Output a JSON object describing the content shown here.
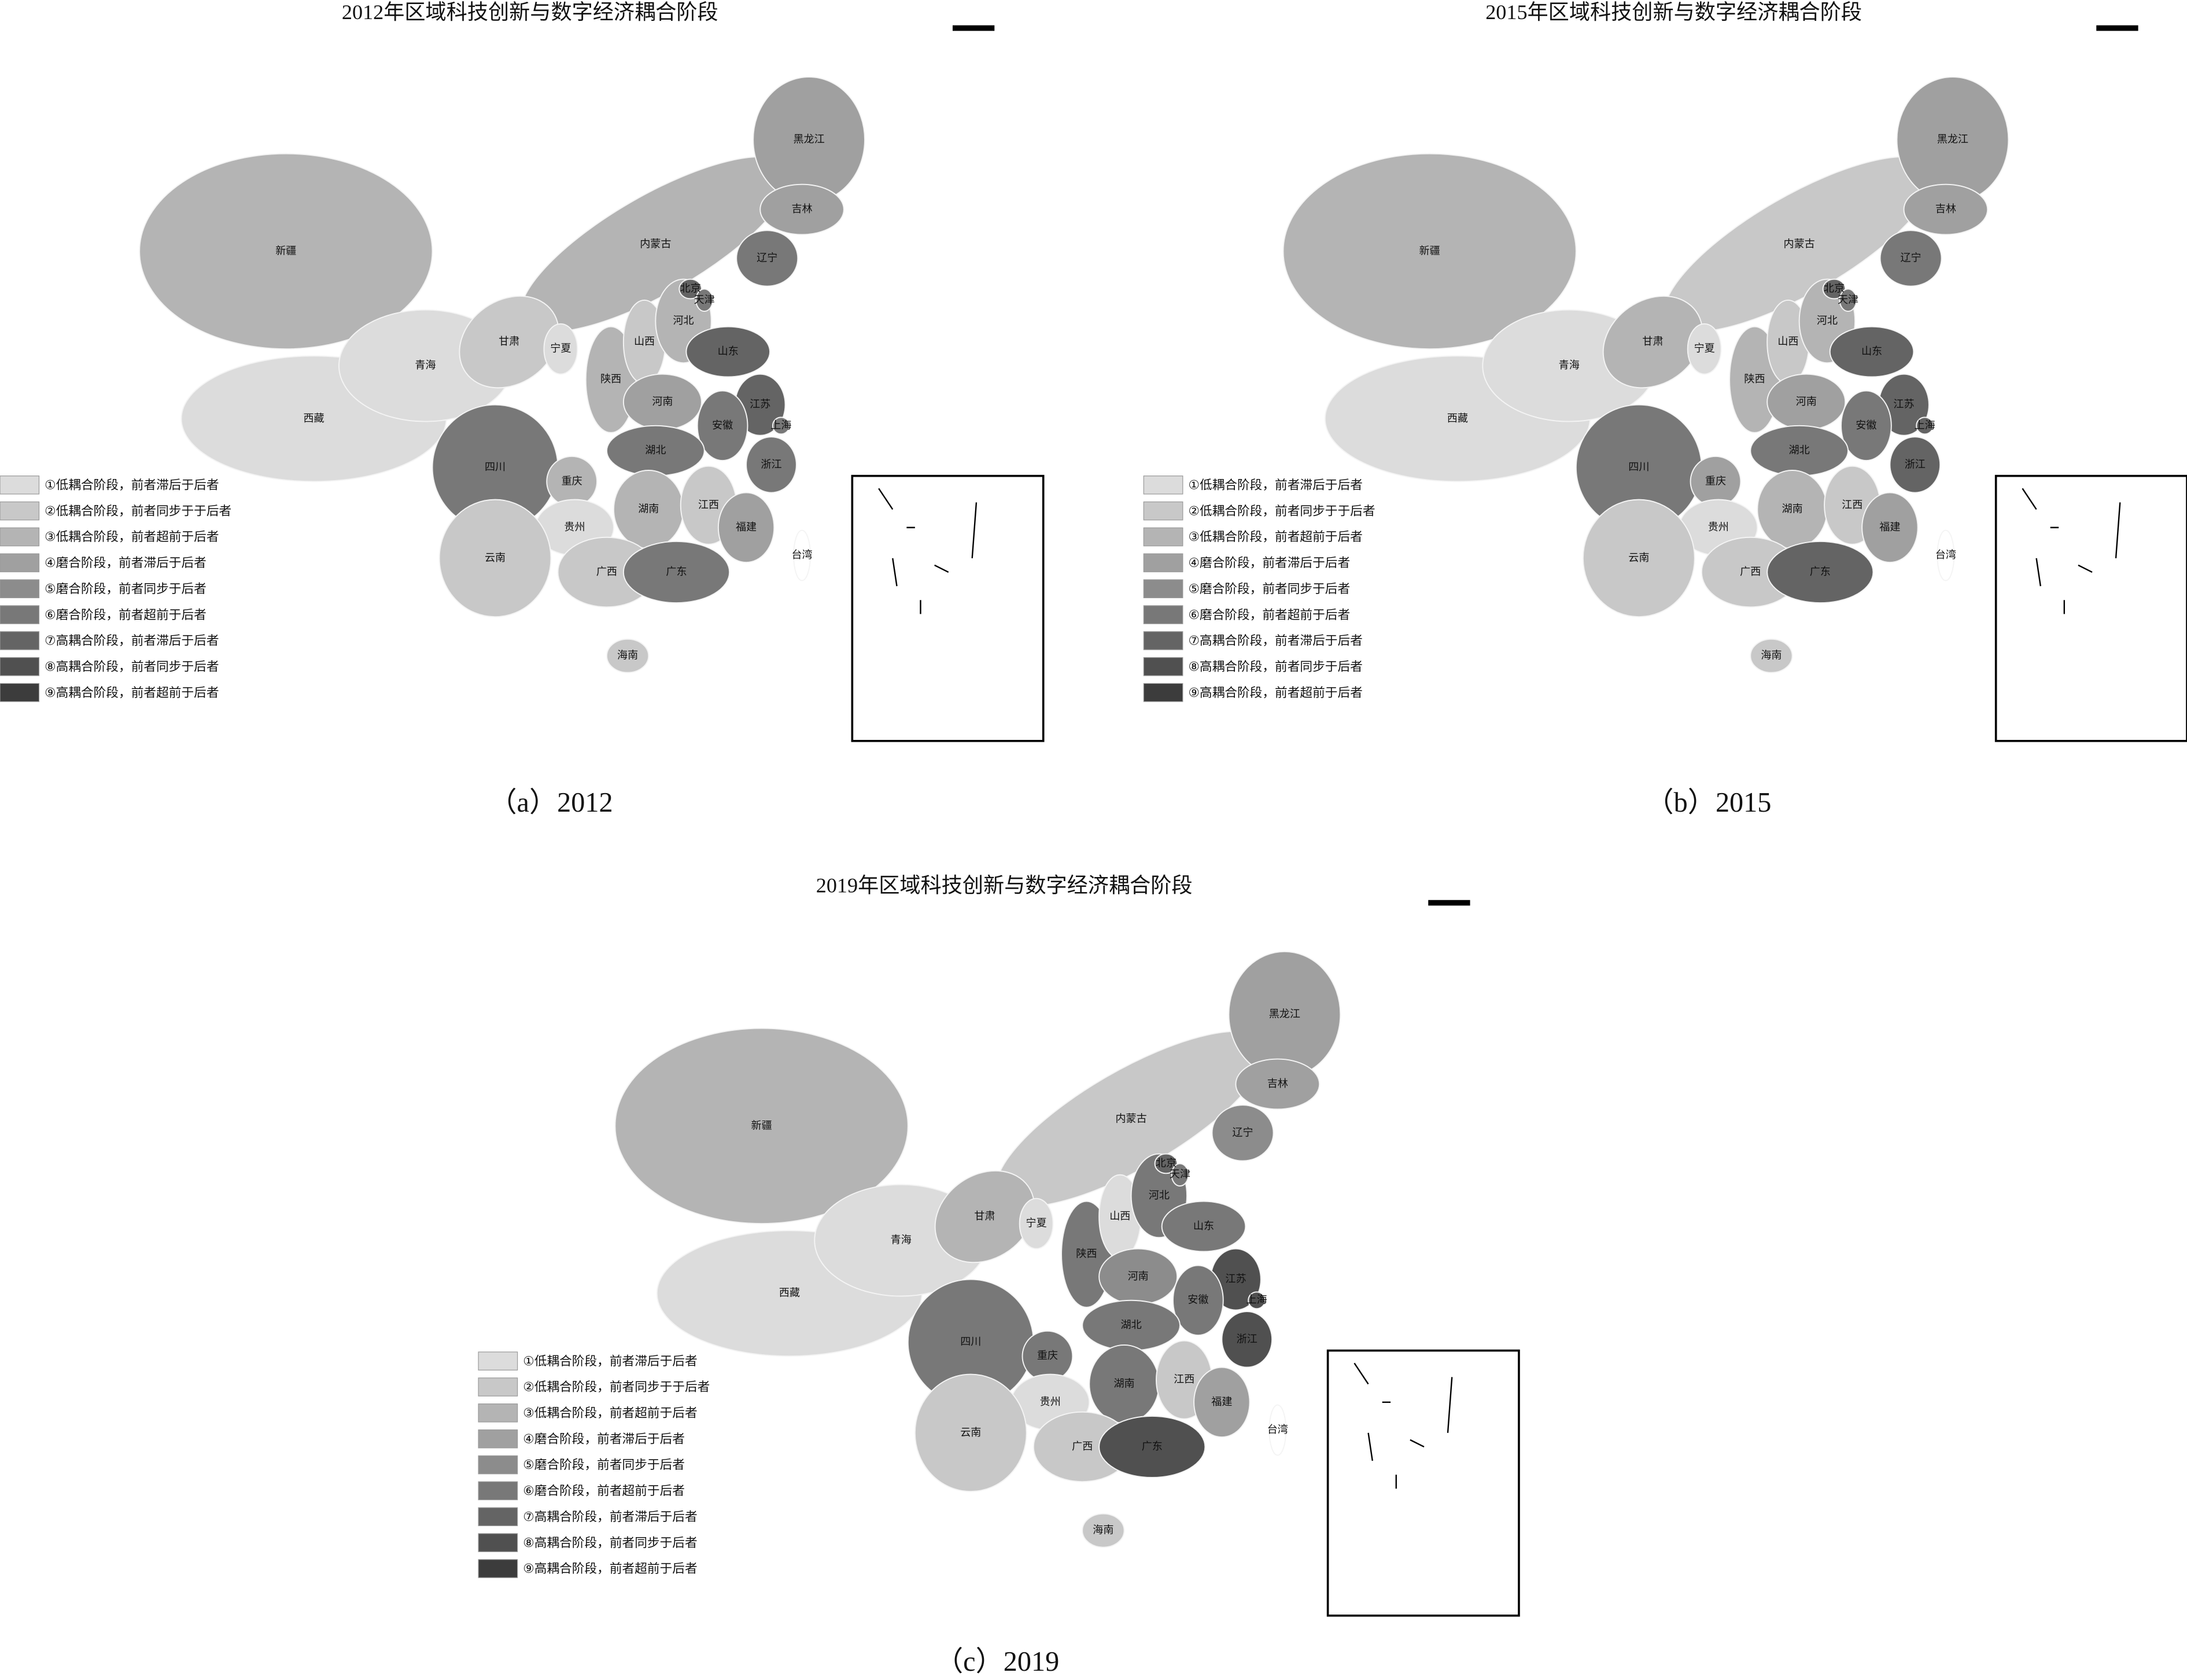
{
  "legend": {
    "items": [
      "①低耦合阶段，前者滞后于后者",
      "②低耦合阶段，前者同步于于后者",
      "③低耦合阶段，前者超前于后者",
      "④磨合阶段，前者滞后于后者",
      "⑤磨合阶段，前者同步于后者",
      "⑥磨合阶段，前者超前于后者",
      "⑦高耦合阶段，前者滞后于后者",
      "⑧高耦合阶段，前者同步于后者",
      "⑨高耦合阶段，前者超前于后者"
    ],
    "colors": [
      "#dcdcdc",
      "#c8c8c8",
      "#b4b4b4",
      "#a0a0a0",
      "#8c8c8c",
      "#787878",
      "#646464",
      "#505050",
      "#3c3c3c"
    ]
  },
  "panels": [
    {
      "title": "2012年区域科技创新与数字经济耦合阶段",
      "caption": "（a）2012",
      "regions": [
        {
          "name": "新疆",
          "level": 3
        },
        {
          "name": "西藏",
          "level": 1
        },
        {
          "name": "青海",
          "level": 1
        },
        {
          "name": "内蒙古",
          "level": 3
        },
        {
          "name": "黑龙江",
          "level": 4
        },
        {
          "name": "吉林",
          "level": 4
        },
        {
          "name": "辽宁",
          "level": 6
        },
        {
          "name": "甘肃",
          "level": 2
        },
        {
          "name": "宁夏",
          "level": 1
        },
        {
          "name": "陕西",
          "level": 3
        },
        {
          "name": "山西",
          "level": 2
        },
        {
          "name": "河北",
          "level": 3
        },
        {
          "name": "北京",
          "level": 7
        },
        {
          "name": "天津",
          "level": 6
        },
        {
          "name": "山东",
          "level": 7
        },
        {
          "name": "河南",
          "level": 4
        },
        {
          "name": "江苏",
          "level": 7
        },
        {
          "name": "安徽",
          "level": 6
        },
        {
          "name": "上海",
          "level": 6
        },
        {
          "name": "浙江",
          "level": 6
        },
        {
          "name": "湖北",
          "level": 6
        },
        {
          "name": "四川",
          "level": 6
        },
        {
          "name": "重庆",
          "level": 3
        },
        {
          "name": "贵州",
          "level": 1
        },
        {
          "name": "湖南",
          "level": 3
        },
        {
          "name": "江西",
          "level": 2
        },
        {
          "name": "福建",
          "level": 4
        },
        {
          "name": "云南",
          "level": 2
        },
        {
          "name": "广西",
          "level": 2
        },
        {
          "name": "广东",
          "level": 6
        },
        {
          "name": "海南",
          "level": 2
        },
        {
          "name": "台湾",
          "level": null
        }
      ]
    },
    {
      "title": "2015年区域科技创新与数字经济耦合阶段",
      "caption": "（b）2015",
      "regions": [
        {
          "name": "新疆",
          "level": 3
        },
        {
          "name": "西藏",
          "level": 1
        },
        {
          "name": "青海",
          "level": 1
        },
        {
          "name": "内蒙古",
          "level": 2
        },
        {
          "name": "黑龙江",
          "level": 4
        },
        {
          "name": "吉林",
          "level": 4
        },
        {
          "name": "辽宁",
          "level": 6
        },
        {
          "name": "甘肃",
          "level": 3
        },
        {
          "name": "宁夏",
          "level": 1
        },
        {
          "name": "陕西",
          "level": 3
        },
        {
          "name": "山西",
          "level": 2
        },
        {
          "name": "河北",
          "level": 3
        },
        {
          "name": "北京",
          "level": 7
        },
        {
          "name": "天津",
          "level": 6
        },
        {
          "name": "山东",
          "level": 7
        },
        {
          "name": "河南",
          "level": 4
        },
        {
          "name": "江苏",
          "level": 7
        },
        {
          "name": "安徽",
          "level": 6
        },
        {
          "name": "上海",
          "level": 7
        },
        {
          "name": "浙江",
          "level": 7
        },
        {
          "name": "湖北",
          "level": 6
        },
        {
          "name": "四川",
          "level": 6
        },
        {
          "name": "重庆",
          "level": 4
        },
        {
          "name": "贵州",
          "level": 1
        },
        {
          "name": "湖南",
          "level": 3
        },
        {
          "name": "江西",
          "level": 2
        },
        {
          "name": "福建",
          "level": 4
        },
        {
          "name": "云南",
          "level": 2
        },
        {
          "name": "广西",
          "level": 2
        },
        {
          "name": "广东",
          "level": 7
        },
        {
          "name": "海南",
          "level": 2
        },
        {
          "name": "台湾",
          "level": null
        }
      ]
    },
    {
      "title": "2019年区域科技创新与数字经济耦合阶段",
      "caption": "（c）2019",
      "regions": [
        {
          "name": "新疆",
          "level": 3
        },
        {
          "name": "西藏",
          "level": 1
        },
        {
          "name": "青海",
          "level": 1
        },
        {
          "name": "内蒙古",
          "level": 2
        },
        {
          "name": "黑龙江",
          "level": 4
        },
        {
          "name": "吉林",
          "level": 4
        },
        {
          "name": "辽宁",
          "level": 5
        },
        {
          "name": "甘肃",
          "level": 3
        },
        {
          "name": "宁夏",
          "level": 1
        },
        {
          "name": "陕西",
          "level": 6
        },
        {
          "name": "山西",
          "level": 1
        },
        {
          "name": "河北",
          "level": 6
        },
        {
          "name": "北京",
          "level": 7
        },
        {
          "name": "天津",
          "level": 6
        },
        {
          "name": "山东",
          "level": 6
        },
        {
          "name": "河南",
          "level": 5
        },
        {
          "name": "江苏",
          "level": 8
        },
        {
          "name": "安徽",
          "level": 6
        },
        {
          "name": "上海",
          "level": 8
        },
        {
          "name": "浙江",
          "level": 8
        },
        {
          "name": "湖北",
          "level": 6
        },
        {
          "name": "四川",
          "level": 6
        },
        {
          "name": "重庆",
          "level": 6
        },
        {
          "name": "贵州",
          "level": 1
        },
        {
          "name": "湖南",
          "level": 6
        },
        {
          "name": "江西",
          "level": 2
        },
        {
          "name": "福建",
          "level": 4
        },
        {
          "name": "云南",
          "level": 2
        },
        {
          "name": "广西",
          "level": 2
        },
        {
          "name": "广东",
          "level": 8
        },
        {
          "name": "海南",
          "level": 2
        },
        {
          "name": "台湾",
          "level": null
        }
      ]
    }
  ]
}
